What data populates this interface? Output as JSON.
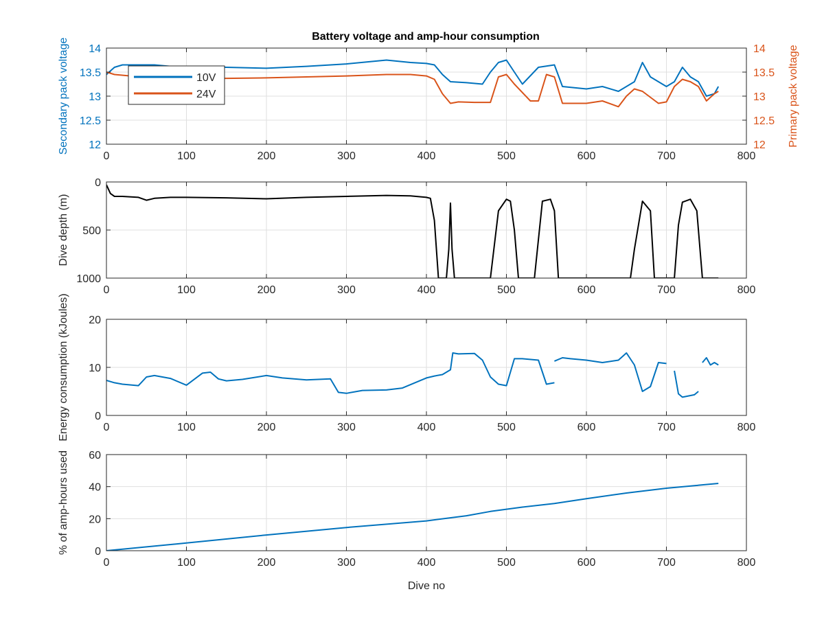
{
  "figure": {
    "title": "Battery voltage and amp-hour consumption",
    "colors": {
      "blue": "#0072BD",
      "orange": "#D95319",
      "black": "#000000",
      "axis": "#262626",
      "grid": "#dfdfdf"
    }
  },
  "chart_data": [
    {
      "type": "line",
      "title": "Battery voltage and amp-hour consumption",
      "xlabel": "",
      "ylabel": "Secondary pack voltage",
      "ylabel_right": "Primary pack voltage",
      "xlim": [
        0,
        800
      ],
      "ylim": [
        12,
        14
      ],
      "ylim_right": [
        12,
        14
      ],
      "xticks": [
        "0",
        "100",
        "200",
        "300",
        "400",
        "500",
        "600",
        "700",
        "800"
      ],
      "yticks": [
        "12",
        "12.5",
        "13",
        "13.5",
        "14"
      ],
      "yticks_right": [
        "12",
        "12.5",
        "13",
        "13.5",
        "14"
      ],
      "grid": true,
      "legend": {
        "position": "top-left",
        "entries": [
          "10V",
          "24V"
        ]
      },
      "series": [
        {
          "name": "10V",
          "axis": "left",
          "color": "#0072BD",
          "x": [
            0,
            10,
            20,
            40,
            60,
            80,
            100,
            150,
            200,
            250,
            300,
            350,
            380,
            400,
            410,
            420,
            430,
            450,
            470,
            480,
            490,
            500,
            510,
            520,
            540,
            560,
            570,
            600,
            620,
            640,
            660,
            670,
            680,
            700,
            710,
            720,
            730,
            740,
            750,
            760,
            765
          ],
          "y": [
            13.45,
            13.6,
            13.65,
            13.65,
            13.65,
            13.62,
            13.62,
            13.6,
            13.58,
            13.62,
            13.67,
            13.75,
            13.7,
            13.68,
            13.65,
            13.45,
            13.3,
            13.28,
            13.25,
            13.5,
            13.7,
            13.75,
            13.5,
            13.25,
            13.6,
            13.65,
            13.2,
            13.15,
            13.2,
            13.1,
            13.3,
            13.7,
            13.4,
            13.2,
            13.3,
            13.6,
            13.4,
            13.3,
            13.0,
            13.05,
            13.2
          ]
        },
        {
          "name": "24V",
          "axis": "right",
          "color": "#D95319",
          "x": [
            0,
            10,
            30,
            60,
            100,
            150,
            200,
            250,
            300,
            350,
            380,
            400,
            410,
            420,
            430,
            440,
            460,
            480,
            490,
            500,
            510,
            530,
            540,
            550,
            560,
            570,
            600,
            620,
            640,
            650,
            660,
            670,
            690,
            700,
            710,
            720,
            730,
            740,
            750,
            760,
            765
          ],
          "y": [
            13.5,
            13.45,
            13.42,
            13.4,
            13.38,
            13.37,
            13.38,
            13.4,
            13.42,
            13.45,
            13.45,
            13.42,
            13.35,
            13.05,
            12.85,
            12.88,
            12.87,
            12.87,
            13.4,
            13.45,
            13.25,
            12.9,
            12.9,
            13.45,
            13.4,
            12.85,
            12.85,
            12.9,
            12.78,
            13.0,
            13.15,
            13.1,
            12.85,
            12.88,
            13.2,
            13.35,
            13.3,
            13.2,
            12.9,
            13.05,
            13.1
          ]
        }
      ]
    },
    {
      "type": "line",
      "xlabel": "",
      "ylabel": "Dive depth (m)",
      "xlim": [
        0,
        800
      ],
      "ylim": [
        0,
        1000
      ],
      "y_reversed": true,
      "xticks": [
        "0",
        "100",
        "200",
        "300",
        "400",
        "500",
        "600",
        "700",
        "800"
      ],
      "yticks": [
        "0",
        "500",
        "1000"
      ],
      "grid": true,
      "series": [
        {
          "color": "#000000",
          "x": [
            0,
            5,
            10,
            20,
            40,
            50,
            60,
            80,
            100,
            150,
            200,
            250,
            300,
            350,
            380,
            400,
            405,
            410,
            415,
            425,
            428,
            430,
            432,
            435,
            440,
            480,
            490,
            500,
            505,
            510,
            515,
            535,
            545,
            555,
            560,
            565,
            570,
            655,
            660,
            670,
            680,
            685,
            710,
            715,
            720,
            730,
            738,
            745,
            765
          ],
          "y": [
            30,
            120,
            150,
            150,
            160,
            190,
            170,
            160,
            160,
            165,
            175,
            160,
            150,
            140,
            145,
            160,
            170,
            400,
            1000,
            1000,
            700,
            220,
            700,
            1000,
            1000,
            1000,
            300,
            180,
            200,
            500,
            1000,
            1000,
            200,
            180,
            300,
            1000,
            1000,
            1000,
            700,
            200,
            300,
            1000,
            1000,
            450,
            210,
            180,
            300,
            1000,
            1000
          ]
        }
      ]
    },
    {
      "type": "line",
      "xlabel": "",
      "ylabel": "Energy consumption (kJoules)",
      "xlim": [
        0,
        800
      ],
      "ylim": [
        0,
        20
      ],
      "xticks": [
        "0",
        "100",
        "200",
        "300",
        "400",
        "500",
        "600",
        "700",
        "800"
      ],
      "yticks": [
        "0",
        "10",
        "20"
      ],
      "grid": true,
      "series": [
        {
          "color": "#0072BD",
          "segments": [
            {
              "x": [
                0,
                10,
                20,
                40,
                50,
                60,
                80,
                100,
                120,
                130,
                140,
                150,
                170,
                200,
                220,
                250,
                280,
                290,
                300,
                320,
                350,
                370,
                400,
                410,
                420,
                430,
                433,
                440,
                460,
                470,
                480,
                490,
                500,
                510,
                520,
                540,
                550,
                560
              ],
              "y": [
                7.3,
                6.8,
                6.5,
                6.2,
                8.0,
                8.3,
                7.7,
                6.3,
                8.8,
                9.0,
                7.6,
                7.2,
                7.5,
                8.3,
                7.8,
                7.4,
                7.6,
                4.8,
                4.6,
                5.2,
                5.3,
                5.7,
                7.8,
                8.2,
                8.5,
                9.5,
                13.0,
                12.8,
                12.9,
                11.5,
                8.0,
                6.5,
                6.2,
                11.8,
                11.8,
                11.5,
                6.5,
                6.8
              ]
            },
            {
              "x": [
                560,
                570,
                580,
                600,
                620,
                640,
                650,
                660,
                670,
                680,
                690,
                700
              ],
              "y": [
                11.3,
                12.0,
                11.8,
                11.5,
                11.0,
                11.5,
                13.0,
                10.5,
                5.0,
                6.0,
                11.0,
                10.8
              ]
            },
            {
              "x": [
                710,
                715,
                720,
                735,
                740
              ],
              "y": [
                9.3,
                4.5,
                3.8,
                4.3,
                5.0
              ]
            },
            {
              "x": [
                745,
                750,
                755,
                760,
                765
              ],
              "y": [
                11.0,
                12.0,
                10.5,
                11.0,
                10.5
              ]
            }
          ]
        }
      ]
    },
    {
      "type": "line",
      "xlabel": "Dive no",
      "ylabel": "% of amp-hours used",
      "xlim": [
        0,
        800
      ],
      "ylim": [
        0,
        60
      ],
      "xticks": [
        "0",
        "100",
        "200",
        "300",
        "400",
        "500",
        "600",
        "700",
        "800"
      ],
      "yticks": [
        "0",
        "20",
        "40",
        "60"
      ],
      "grid": true,
      "series": [
        {
          "color": "#0072BD",
          "x": [
            0,
            100,
            200,
            300,
            400,
            450,
            480,
            520,
            560,
            600,
            650,
            700,
            765
          ],
          "y": [
            0,
            4.8,
            9.8,
            14.5,
            18.6,
            21.8,
            24.5,
            27.2,
            29.5,
            32.5,
            36.0,
            39.0,
            42.0
          ]
        }
      ]
    }
  ]
}
